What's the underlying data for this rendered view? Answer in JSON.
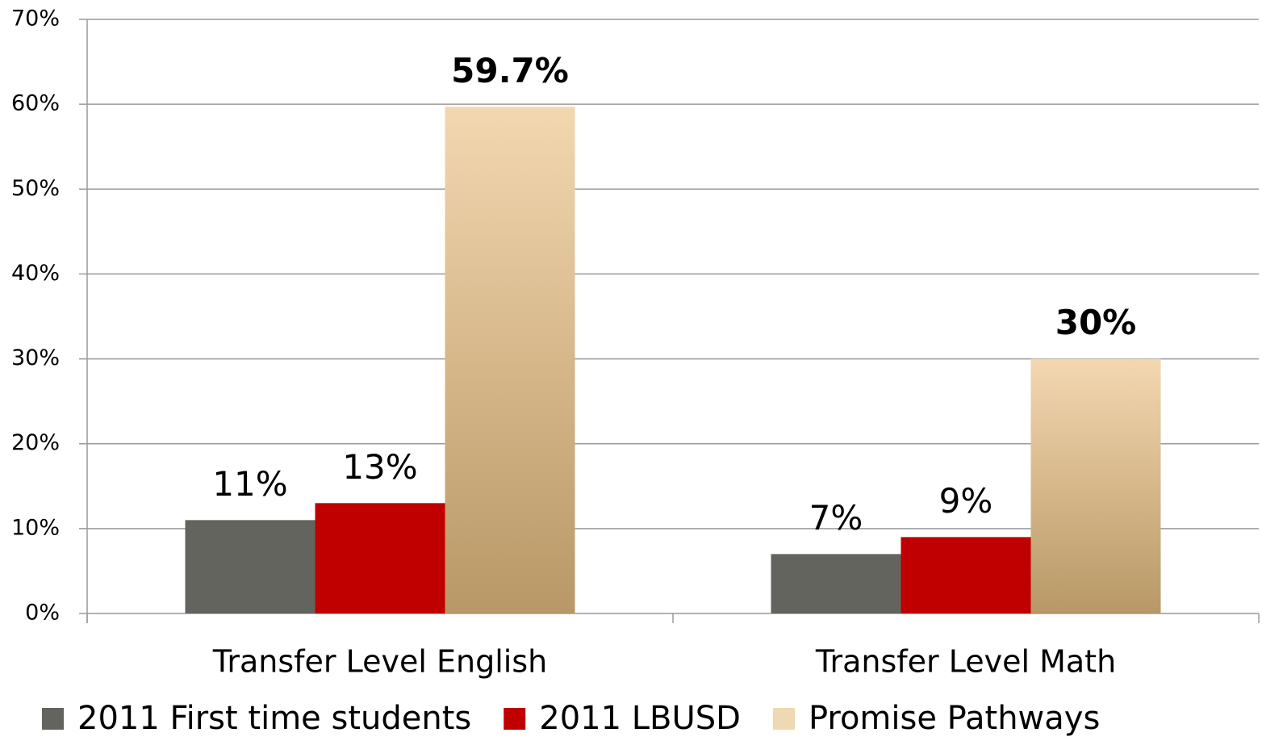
{
  "chart_data": {
    "type": "bar",
    "categories": [
      "Transfer Level English",
      "Transfer Level Math"
    ],
    "series": [
      {
        "name": "2011 First time students",
        "color": "#64645e",
        "values": [
          11,
          7
        ],
        "value_labels": [
          "11%",
          "7%"
        ]
      },
      {
        "name": "2011 LBUSD",
        "color": "#c00000",
        "values": [
          13,
          9
        ],
        "value_labels": [
          "13%",
          "9%"
        ]
      },
      {
        "name": "Promise Pathways",
        "color": "#b89866",
        "values": [
          59.7,
          30
        ],
        "value_labels": [
          "59.7%",
          "30%"
        ]
      }
    ],
    "ylim": [
      0,
      70
    ],
    "yticks": [
      {
        "value": 0,
        "label": "0%"
      },
      {
        "value": 10,
        "label": "10%"
      },
      {
        "value": 20,
        "label": "20%"
      },
      {
        "value": 30,
        "label": "30%"
      },
      {
        "value": 40,
        "label": "40%"
      },
      {
        "value": 50,
        "label": "50%"
      },
      {
        "value": 60,
        "label": "60%"
      },
      {
        "value": 70,
        "label": "70%"
      }
    ],
    "grid": true,
    "legend": "bottom"
  }
}
